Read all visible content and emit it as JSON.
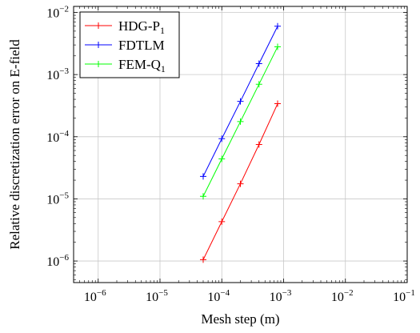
{
  "chart_data": {
    "type": "line",
    "xscale": "log",
    "yscale": "log",
    "xlabel": "Mesh step (m)",
    "ylabel": "Relative discretization error on E-field",
    "xlim": [
      4e-07,
      0.1
    ],
    "ylim": [
      4.5e-07,
      0.0125
    ],
    "grid": true,
    "legend_position": "top-left",
    "x_ticks": [
      {
        "value": 1e-06,
        "base": "10",
        "exp": "−6"
      },
      {
        "value": 1e-05,
        "base": "10",
        "exp": "−5"
      },
      {
        "value": 0.0001,
        "base": "10",
        "exp": "−4"
      },
      {
        "value": 0.001,
        "base": "10",
        "exp": "−3"
      },
      {
        "value": 0.01,
        "base": "10",
        "exp": "−2"
      },
      {
        "value": 0.1,
        "base": "10",
        "exp": "−1"
      }
    ],
    "y_ticks": [
      {
        "value": 1e-06,
        "base": "10",
        "exp": "−6"
      },
      {
        "value": 1e-05,
        "base": "10",
        "exp": "−5"
      },
      {
        "value": 0.0001,
        "base": "10",
        "exp": "−4"
      },
      {
        "value": 0.001,
        "base": "10",
        "exp": "−3"
      },
      {
        "value": 0.01,
        "base": "10",
        "exp": "−2"
      }
    ],
    "series": [
      {
        "name": "HDG-P",
        "name_sub": "1",
        "color": "#ff0000",
        "x": [
          5e-05,
          0.0001,
          0.0002,
          0.0004,
          0.0008
        ],
        "y": [
          1.05e-06,
          4.3e-06,
          1.75e-05,
          7.5e-05,
          0.00034
        ]
      },
      {
        "name": "FDTLM",
        "name_sub": "",
        "color": "#0000ff",
        "x": [
          5e-05,
          0.0001,
          0.0002,
          0.0004,
          0.0008
        ],
        "y": [
          2.3e-05,
          9.3e-05,
          0.00037,
          0.0015,
          0.006
        ]
      },
      {
        "name": "FEM-Q",
        "name_sub": "1",
        "color": "#00ff00",
        "x": [
          5e-05,
          0.0001,
          0.0002,
          0.0004,
          0.0008
        ],
        "y": [
          1.1e-05,
          4.4e-05,
          0.000175,
          0.0007,
          0.0028
        ]
      }
    ]
  }
}
